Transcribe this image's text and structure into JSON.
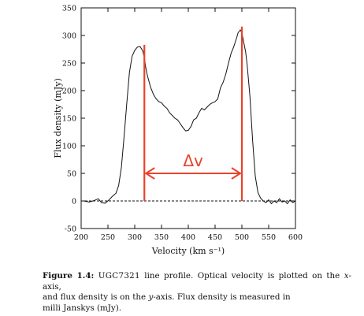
{
  "chart_data": {
    "type": "line",
    "title": "",
    "xlabel": "Velocity (km s⁻¹)",
    "ylabel": "Flux density (mJy)",
    "xlim": [
      200,
      600
    ],
    "ylim": [
      -50,
      350
    ],
    "xticks": [
      200,
      250,
      300,
      350,
      400,
      450,
      500,
      550,
      600
    ],
    "yticks": [
      -50,
      0,
      50,
      100,
      150,
      200,
      250,
      300,
      350
    ],
    "grid": false,
    "series": [
      {
        "name": "",
        "color": "#111111",
        "x": [
          205,
          215,
          225,
          232,
          238,
          245,
          252,
          258,
          265,
          270,
          275,
          280,
          285,
          290,
          295,
          300,
          305,
          310,
          315,
          318,
          320,
          323,
          327,
          330,
          335,
          340,
          345,
          350,
          355,
          360,
          365,
          370,
          375,
          380,
          385,
          390,
          395,
          400,
          405,
          410,
          415,
          420,
          425,
          430,
          435,
          440,
          445,
          450,
          455,
          460,
          465,
          470,
          475,
          480,
          485,
          490,
          493,
          497,
          500,
          503,
          507,
          510,
          515,
          520,
          525,
          530,
          535,
          540,
          545,
          550,
          555,
          560,
          565,
          570,
          575,
          580,
          585,
          590,
          595,
          600
        ],
        "y": [
          0,
          -2,
          1,
          4,
          -3,
          -4,
          2,
          8,
          14,
          28,
          60,
          115,
          175,
          232,
          262,
          273,
          279,
          280,
          272,
          260,
          245,
          230,
          215,
          205,
          193,
          185,
          180,
          178,
          172,
          168,
          160,
          155,
          150,
          147,
          140,
          133,
          127,
          128,
          135,
          147,
          150,
          160,
          168,
          165,
          170,
          175,
          178,
          180,
          185,
          205,
          215,
          230,
          250,
          268,
          280,
          295,
          305,
          310,
          305,
          290,
          270,
          245,
          190,
          110,
          45,
          15,
          5,
          0,
          -3,
          2,
          -5,
          0,
          -3,
          4,
          -2,
          0,
          -5,
          2,
          -3,
          0
        ]
      }
    ],
    "reference_lines": [
      {
        "style": "dashed",
        "y": 0
      }
    ],
    "annotations": {
      "color": "#e8432a",
      "symbol": "Δv",
      "markers": [
        {
          "x": 318,
          "y_top": 283
        },
        {
          "x": 500,
          "y_top": 316
        }
      ],
      "arrow": {
        "x_from": 318,
        "x_to": 500,
        "y": 50
      }
    }
  },
  "caption": {
    "label": "Figure 1.4:",
    "galaxy": "UGC7321",
    "line1_rest": " line profile. Optical velocity is plotted on the ",
    "xaxis_var": "x",
    "line1_tail": "-axis,",
    "line2_start": "and flux density is on the ",
    "yaxis_var": "y",
    "line2_tail": "-axis. Flux density is measured in",
    "line3": "milli Janskys (mJy)."
  }
}
